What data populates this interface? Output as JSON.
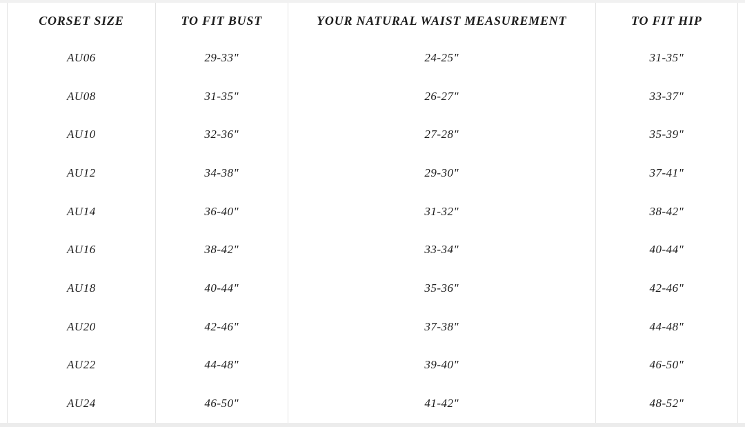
{
  "colors": {
    "background": "#ffffff",
    "border": "#e4e4e4",
    "text": "#1d1d1d",
    "top_strip": "#f1f1f1",
    "bottom_strip": "#ececec"
  },
  "table": {
    "columns": [
      {
        "label": "CORSET SIZE"
      },
      {
        "label": "TO FIT BUST"
      },
      {
        "label": "YOUR NATURAL WAIST MEASUREMENT"
      },
      {
        "label": "TO FIT HIP"
      }
    ],
    "rows": [
      {
        "size": "AU06",
        "bust": "29-33\"",
        "waist": "24-25\"",
        "hip": "31-35\""
      },
      {
        "size": "AU08",
        "bust": "31-35\"",
        "waist": "26-27\"",
        "hip": "33-37\""
      },
      {
        "size": "AU10",
        "bust": "32-36\"",
        "waist": "27-28\"",
        "hip": "35-39\""
      },
      {
        "size": "AU12",
        "bust": "34-38\"",
        "waist": "29-30\"",
        "hip": "37-41\""
      },
      {
        "size": "AU14",
        "bust": "36-40\"",
        "waist": "31-32\"",
        "hip": "38-42\""
      },
      {
        "size": "AU16",
        "bust": "38-42\"",
        "waist": "33-34\"",
        "hip": "40-44\""
      },
      {
        "size": "AU18",
        "bust": "40-44\"",
        "waist": "35-36\"",
        "hip": "42-46\""
      },
      {
        "size": "AU20",
        "bust": "42-46\"",
        "waist": "37-38\"",
        "hip": "44-48\""
      },
      {
        "size": "AU22",
        "bust": "44-48\"",
        "waist": "39-40\"",
        "hip": "46-50\""
      },
      {
        "size": "AU24",
        "bust": "46-50\"",
        "waist": "41-42\"",
        "hip": "48-52\""
      }
    ]
  }
}
